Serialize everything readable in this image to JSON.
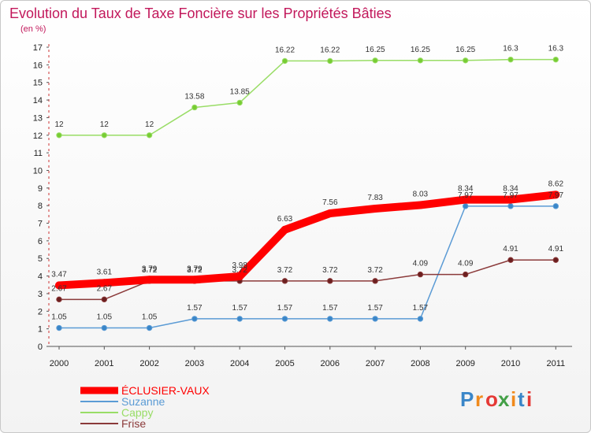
{
  "chart_data": {
    "type": "line",
    "title": "Evolution du Taux de Taxe Foncière sur les Propriétés Bâties",
    "subtitle": "(en %)",
    "x": [
      "2000",
      "2001",
      "2002",
      "2003",
      "2004",
      "2005",
      "2006",
      "2007",
      "2008",
      "2009",
      "2010",
      "2011"
    ],
    "ylim": [
      0,
      17
    ],
    "yticks": [
      "0",
      "1",
      "2",
      "3",
      "4",
      "5",
      "6",
      "7",
      "8",
      "9",
      "10",
      "11",
      "12",
      "13",
      "14",
      "15",
      "16",
      "17"
    ],
    "series": [
      {
        "name": "ÉCLUSIER-VAUX",
        "color": "#ff0000",
        "values": [
          3.47,
          3.61,
          3.79,
          3.79,
          3.98,
          6.63,
          7.56,
          7.83,
          8.03,
          8.34,
          8.34,
          8.62
        ],
        "labels": [
          "3.47",
          "3.61",
          "3.79",
          "3.79",
          "3.98",
          "6.63",
          "7.56",
          "7.83",
          "8.03",
          "8.34",
          "8.34",
          "8.62"
        ]
      },
      {
        "name": "Suzanne",
        "color": "#5b9bd5",
        "marker": "#3a86c8",
        "values": [
          1.05,
          1.05,
          1.05,
          1.57,
          1.57,
          1.57,
          1.57,
          1.57,
          1.57,
          7.97,
          7.97,
          7.97
        ],
        "labels": [
          "1.05",
          "1.05",
          "1.05",
          "1.57",
          "1.57",
          "1.57",
          "1.57",
          "1.57",
          "1.57",
          "7.97",
          "7.97",
          "7.97"
        ]
      },
      {
        "name": "Cappy",
        "color": "#99dd66",
        "marker": "#77cc33",
        "values": [
          12,
          12,
          12,
          13.58,
          13.85,
          16.22,
          16.22,
          16.25,
          16.25,
          16.25,
          16.3,
          16.3
        ],
        "labels": [
          "12",
          "12",
          "12",
          "13.58",
          "13.85",
          "16.22",
          "16.22",
          "16.25",
          "16.25",
          "16.25",
          "16.3",
          "16.3"
        ]
      },
      {
        "name": "Frise",
        "color": "#8b3a3a",
        "marker": "#6b1f1f",
        "values": [
          2.67,
          2.67,
          3.72,
          3.72,
          3.72,
          3.72,
          3.72,
          3.72,
          4.09,
          4.09,
          4.91,
          4.91
        ],
        "labels": [
          "2.67",
          "2.67",
          "3.72",
          "3.72",
          "3.72",
          "3.72",
          "3.72",
          "3.72",
          "4.09",
          "4.09",
          "4.91",
          "4.91"
        ]
      }
    ]
  },
  "logo": {
    "letters": [
      "P",
      "r",
      "o",
      "x",
      "i",
      "t",
      "i"
    ],
    "colors": [
      "#3a86c8",
      "#f08a1c",
      "#e53935",
      "#43a047",
      "#f08a1c",
      "#3a86c8",
      "#e53935"
    ]
  }
}
